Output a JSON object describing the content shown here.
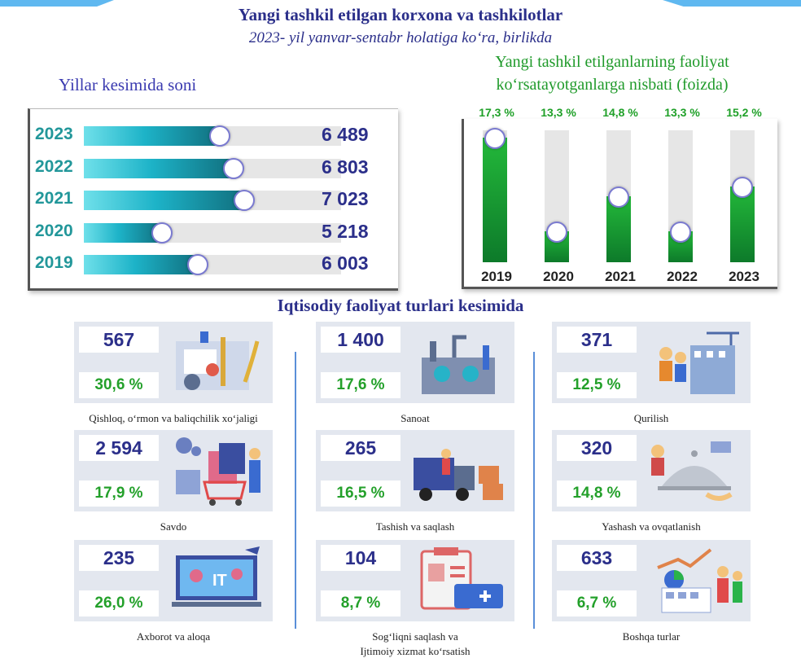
{
  "title": "Yangi tashkil etilgan korxona va tashkilotlar",
  "subtitle": "2023- yil yanvar-sentabr holatiga ko‘ra, birlikda",
  "left_heading": "Yillar kesimida soni",
  "right_heading_line1": "Yangi tashkil etilganlarning faoliyat",
  "right_heading_line2": "ko‘rsatayotganlarga nisbati (foizda)",
  "section_heading": "Iqtisodiy faoliyat turlari kesimida",
  "colors": {
    "title": "#2b2f8a",
    "teal": "#1db3c8",
    "green": "#1fa028",
    "card_bg": "#e3e7ef"
  },
  "chart_data": [
    {
      "type": "bar",
      "orientation": "horizontal",
      "categories": [
        "2023",
        "2022",
        "2021",
        "2020",
        "2019"
      ],
      "values": [
        6489,
        6803,
        7023,
        5218,
        6003
      ],
      "value_labels": [
        "6 489",
        "6 803",
        "7 023",
        "5 218",
        "6 003"
      ],
      "xlim": [
        3500,
        7500
      ],
      "title": "Yillar kesimida soni"
    },
    {
      "type": "bar",
      "orientation": "vertical",
      "categories": [
        "2019",
        "2020",
        "2021",
        "2022",
        "2023"
      ],
      "values": [
        17.3,
        13.3,
        14.8,
        13.3,
        15.2
      ],
      "value_labels": [
        "17,3 %",
        "13,3 %",
        "14,8 %",
        "13,3 %",
        "15,2 %"
      ],
      "ylim": [
        12,
        17.6
      ],
      "title": "Yangi tashkil etilganlarning faoliyat ko‘rsatayotganlarga nisbati (foizda)"
    }
  ],
  "sectors": [
    {
      "count": "567",
      "percent": "30,6 %",
      "label": "Qishloq, o‘rmon va baliqchilik xo‘jaligi",
      "icon": "agriculture-icon"
    },
    {
      "count": "1 400",
      "percent": "17,6 %",
      "label": "Sanoat",
      "icon": "factory-icon"
    },
    {
      "count": "371",
      "percent": "12,5 %",
      "label": "Qurilish",
      "icon": "construction-icon"
    },
    {
      "count": "2 594",
      "percent": "17,9 %",
      "label": "Savdo",
      "icon": "shopping-icon"
    },
    {
      "count": "265",
      "percent": "16,5 %",
      "label": "Tashish va saqlash",
      "icon": "truck-icon"
    },
    {
      "count": "320",
      "percent": "14,8 %",
      "label": "Yashash va ovqatlanish",
      "icon": "food-service-icon"
    },
    {
      "count": "235",
      "percent": "26,0 %",
      "label": "Axborot va aloqa",
      "icon": "it-icon"
    },
    {
      "count": "104",
      "percent": "8,7 %",
      "label": "Sog‘liqni saqlash va",
      "label2": "Ijtimoiy xizmat ko‘rsatish",
      "icon": "medical-icon"
    },
    {
      "count": "633",
      "percent": "6,7 %",
      "label": "Boshqa turlar",
      "icon": "analytics-icon"
    }
  ]
}
